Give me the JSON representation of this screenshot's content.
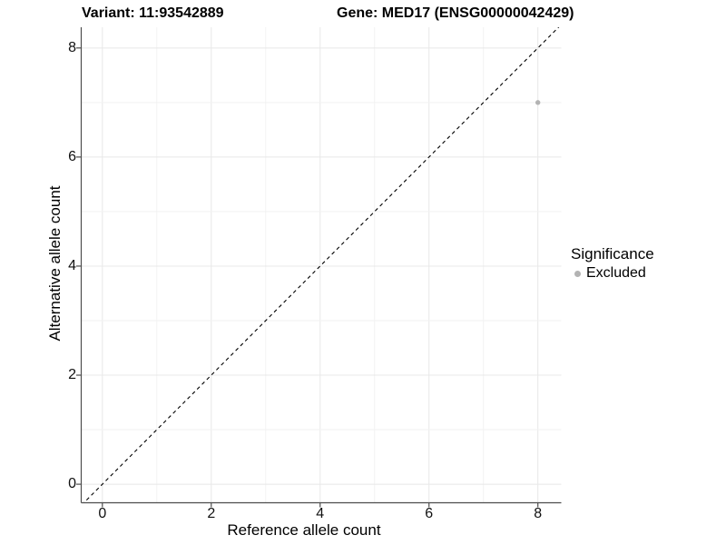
{
  "header": {
    "variant_title": "Variant: 11:93542889",
    "gene_title": "Gene: MED17 (ENSG00000042429)"
  },
  "colors": {
    "background": "#ffffff",
    "grid_major": "#e8e8e8",
    "grid_minor": "#f2f2f2",
    "axis_line": "#4d4d4d",
    "identity_line": "#000000",
    "excluded_point": "#b3b3b3",
    "text": "#000000"
  },
  "chart_data": {
    "type": "scatter",
    "title_left": "Variant: 11:93542889",
    "title_right": "Gene: MED17 (ENSG00000042429)",
    "xlabel": "Reference allele count",
    "ylabel": "Alternative allele count",
    "xlim": [
      -0.38,
      8.43
    ],
    "ylim": [
      -0.34,
      8.38
    ],
    "x_ticks": [
      0,
      2,
      4,
      6,
      8
    ],
    "y_ticks": [
      0,
      2,
      4,
      6,
      8
    ],
    "minor_grid_step": 1,
    "grid": true,
    "identity_line": {
      "equation": "y = x",
      "style": "dashed",
      "color": "#000000"
    },
    "series": [
      {
        "name": "Excluded",
        "color": "#b3b3b3",
        "points": [
          {
            "x": 8,
            "y": 7
          }
        ]
      }
    ],
    "legend": {
      "title": "Significance",
      "position": "right",
      "items": [
        {
          "label": "Excluded",
          "color": "#b3b3b3"
        }
      ]
    }
  }
}
